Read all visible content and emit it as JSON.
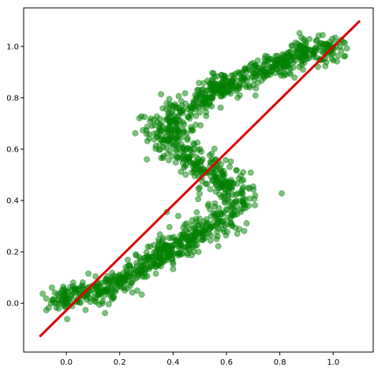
{
  "chart_data": {
    "type": "scatter",
    "title": "",
    "xlabel": "",
    "ylabel": "",
    "xlim": [
      -0.16,
      1.15
    ],
    "ylim": [
      -0.19,
      1.15
    ],
    "grid": false,
    "x_ticks": [
      0.0,
      0.2,
      0.4,
      0.6,
      0.8,
      1.0
    ],
    "x_tick_labels": [
      "0.0",
      "0.2",
      "0.4",
      "0.6",
      "0.8",
      "1.0"
    ],
    "y_ticks": [
      0.0,
      0.2,
      0.4,
      0.6,
      0.8,
      1.0
    ],
    "y_tick_labels": [
      "0.0",
      "0.2",
      "0.4",
      "0.6",
      "0.8",
      "1.0"
    ],
    "series": [
      {
        "kind": "scatter",
        "color": "#008000",
        "opacity": 0.5,
        "description_points": "S-shaped band of ~1500 points; sampled centerline values below",
        "centerline": [
          [
            -0.05,
            0.01
          ],
          [
            0.0,
            0.02
          ],
          [
            0.05,
            0.03
          ],
          [
            0.1,
            0.04
          ],
          [
            0.15,
            0.06
          ],
          [
            0.2,
            0.09
          ],
          [
            0.25,
            0.12
          ],
          [
            0.3,
            0.15
          ],
          [
            0.35,
            0.18
          ],
          [
            0.4,
            0.21
          ],
          [
            0.45,
            0.24
          ],
          [
            0.5,
            0.27
          ],
          [
            0.55,
            0.3
          ],
          [
            0.6,
            0.34
          ],
          [
            0.63,
            0.38
          ],
          [
            0.64,
            0.42
          ],
          [
            0.6,
            0.46
          ],
          [
            0.55,
            0.5
          ],
          [
            0.5,
            0.54
          ],
          [
            0.45,
            0.58
          ],
          [
            0.4,
            0.62
          ],
          [
            0.37,
            0.66
          ],
          [
            0.38,
            0.7
          ],
          [
            0.42,
            0.74
          ],
          [
            0.47,
            0.78
          ],
          [
            0.52,
            0.81
          ],
          [
            0.57,
            0.84
          ],
          [
            0.62,
            0.86
          ],
          [
            0.67,
            0.88
          ],
          [
            0.72,
            0.9
          ],
          [
            0.77,
            0.92
          ],
          [
            0.82,
            0.94
          ],
          [
            0.87,
            0.96
          ],
          [
            0.92,
            0.98
          ],
          [
            0.97,
            0.99
          ],
          [
            1.02,
            0.99
          ]
        ],
        "band_width": 0.1
      },
      {
        "kind": "line",
        "color": "#dd0000",
        "x": [
          -0.1,
          1.1
        ],
        "y": [
          -0.13,
          1.1
        ]
      }
    ]
  }
}
